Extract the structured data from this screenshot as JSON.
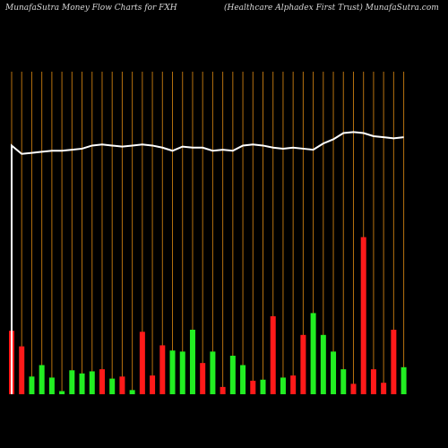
{
  "header": {
    "left": "MunafaSutra  Money Flow  Charts for FXH",
    "right": "(Healthcare   Alphadex First Trust) MunafaSutra.com"
  },
  "colors": {
    "background": "#000000",
    "up": "#22ee22",
    "down": "#ff1a1a",
    "grid": "#b8720f",
    "line": "#ffffff"
  },
  "chart_data": {
    "type": "bar",
    "x": [
      1,
      2,
      3,
      4,
      5,
      6,
      7,
      8,
      9,
      10,
      11,
      12,
      13,
      14,
      15,
      16,
      17,
      18,
      19,
      20,
      21,
      22,
      23,
      24,
      25,
      26,
      27,
      28,
      29,
      30,
      31,
      32,
      33,
      34,
      35,
      36,
      37,
      38,
      39,
      40
    ],
    "series": [
      {
        "type": "bar",
        "values": [
          61,
          46,
          17,
          28,
          16,
          3,
          23,
          20,
          22,
          24,
          15,
          17,
          4,
          60,
          18,
          47,
          42,
          41,
          62,
          30,
          41,
          7,
          37,
          28,
          13,
          14,
          75,
          16,
          18,
          57,
          78,
          57,
          41,
          24,
          10,
          151,
          24,
          11,
          62,
          26
        ],
        "direction": [
          "down",
          "down",
          "up",
          "up",
          "up",
          "up",
          "up",
          "up",
          "up",
          "down",
          "up",
          "down",
          "up",
          "down",
          "down",
          "down",
          "up",
          "up",
          "up",
          "down",
          "up",
          "down",
          "up",
          "up",
          "down",
          "up",
          "down",
          "up",
          "down",
          "down",
          "up",
          "up",
          "up",
          "up",
          "down",
          "down",
          "down",
          "down",
          "down",
          "up"
        ]
      },
      {
        "type": "line",
        "values": [
          239,
          231,
          232,
          233,
          234,
          234,
          235,
          236,
          239,
          240,
          239,
          238,
          239,
          240,
          239,
          237,
          234,
          238,
          237,
          237,
          234,
          235,
          234,
          239,
          240,
          239,
          237,
          236,
          237,
          236,
          235,
          241,
          245,
          251,
          252,
          251,
          248,
          247,
          246,
          247
        ]
      }
    ],
    "ylim": [
      0,
      310
    ],
    "grid": "vertical"
  }
}
